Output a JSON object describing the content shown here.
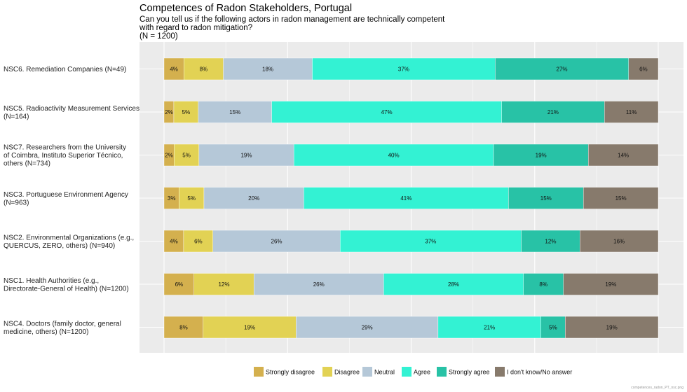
{
  "chart_data": {
    "type": "bar",
    "orientation": "horizontal",
    "stacked": true,
    "title": "Competences of Radon Stakeholders, Portugal",
    "subtitle_lines": [
      "Can you tell us if the following actors in radon management are technically competent",
      "with regard to radon mitigation?",
      "(N = 1200)"
    ],
    "xlim": [
      0,
      100
    ],
    "grid": true,
    "legend_position": "bottom",
    "categories": [
      {
        "lines": [
          "NSC6. Remediation Companies (N=49)"
        ]
      },
      {
        "lines": [
          "NSC5. Radioactivity Measurement Services",
          "(N=164)"
        ]
      },
      {
        "lines": [
          "NSC7. Researchers from the University",
          "of Coimbra, Instituto Superior Técnico,",
          "others (N=734)"
        ]
      },
      {
        "lines": [
          "NSC3. Portuguese Environment Agency",
          "(N=963)"
        ]
      },
      {
        "lines": [
          "NSC2. Environmental Organizations (e.g.,",
          "QUERCUS, ZERO, others) (N=940)"
        ]
      },
      {
        "lines": [
          "NSC1. Health Authorities (e.g.,",
          "Directorate-General of Health) (N=1200)"
        ]
      },
      {
        "lines": [
          "NSC4. Doctors (family doctor, general",
          "medicine, others) (N=1200)"
        ]
      }
    ],
    "series": [
      {
        "name": "Strongly disagree",
        "color": "#d4b04e",
        "values": [
          4,
          2,
          2,
          3,
          4,
          6,
          8
        ],
        "labels": [
          "4%",
          "2%",
          "2%",
          "3%",
          "4%",
          "6%",
          "8%"
        ]
      },
      {
        "name": "Disagree",
        "color": "#e2d254",
        "values": [
          8,
          5,
          5,
          5,
          6,
          12,
          19
        ],
        "labels": [
          "8%",
          "5%",
          "5%",
          "5%",
          "6%",
          "12%",
          "19%"
        ]
      },
      {
        "name": "Neutral",
        "color": "#b5c8d8",
        "values": [
          18,
          15,
          19,
          20,
          26,
          26,
          29
        ],
        "labels": [
          "18%",
          "15%",
          "19%",
          "20%",
          "26%",
          "26%",
          "29%"
        ]
      },
      {
        "name": "Agree",
        "color": "#33f2d3",
        "values": [
          37,
          47,
          40,
          41,
          37,
          28,
          21
        ],
        "labels": [
          "37%",
          "47%",
          "40%",
          "41%",
          "37%",
          "28%",
          "21%"
        ]
      },
      {
        "name": "Strongly agree",
        "color": "#28c2a6",
        "values": [
          27,
          21,
          19,
          15,
          12,
          8,
          5
        ],
        "labels": [
          "27%",
          "21%",
          "19%",
          "15%",
          "12%",
          "8%",
          "5%"
        ]
      },
      {
        "name": "I don't know/No answer",
        "color": "#877a6c",
        "values": [
          6,
          11,
          14,
          15,
          16,
          19,
          19
        ],
        "labels": [
          "6%",
          "11%",
          "14%",
          "15%",
          "16%",
          "19%",
          "19%"
        ]
      }
    ],
    "watermark": "competences_radon_PT_nsc.png"
  }
}
